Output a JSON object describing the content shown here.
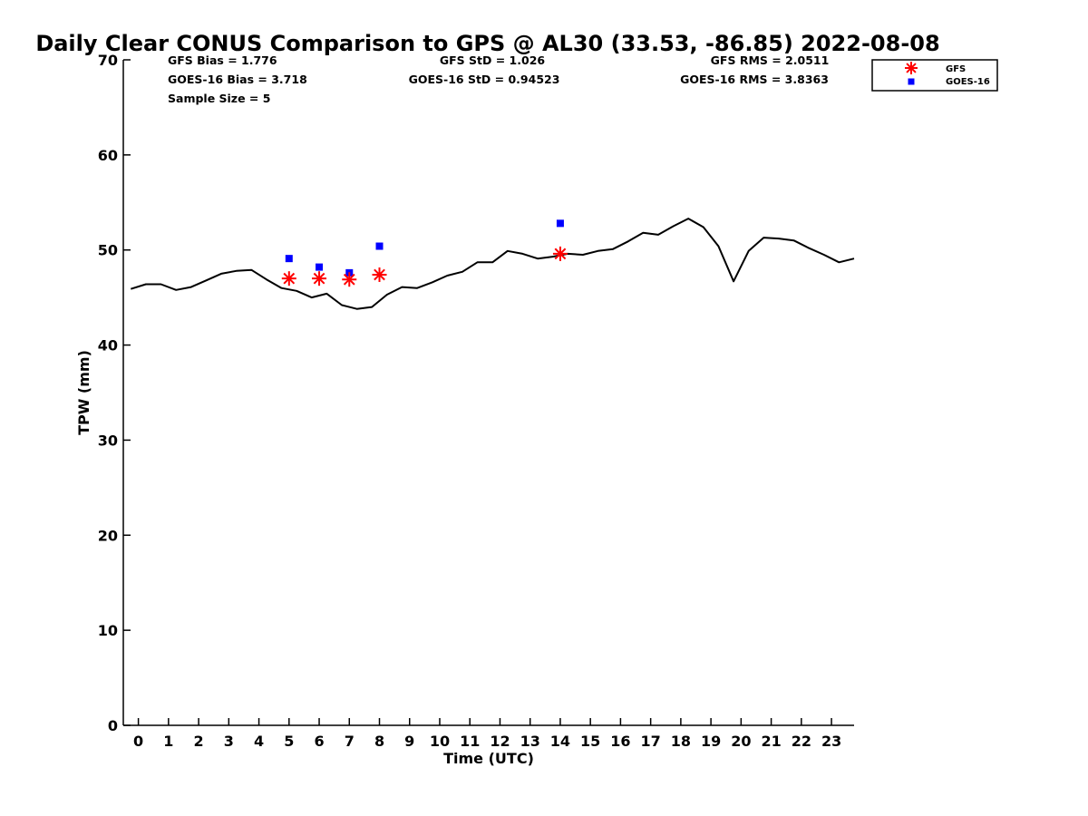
{
  "chart_data": {
    "type": "line",
    "title": "Daily Clear CONUS Comparison to GPS @ AL30 (33.53, -86.85) 2022-08-08",
    "xlabel": "Time (UTC)",
    "ylabel": "TPW (mm)",
    "xlim": [
      -0.5,
      23.75
    ],
    "ylim": [
      0,
      70
    ],
    "xticks": [
      "0",
      "1",
      "2",
      "3",
      "4",
      "5",
      "6",
      "7",
      "8",
      "9",
      "10",
      "11",
      "12",
      "13",
      "14",
      "15",
      "16",
      "17",
      "18",
      "19",
      "20",
      "21",
      "22",
      "23"
    ],
    "yticks": [
      "0",
      "10",
      "20",
      "30",
      "40",
      "50",
      "60",
      "70"
    ],
    "grid": false,
    "legend_position": "top-right, outside plot",
    "stats": {
      "gfs_bias": "GFS Bias = 1.776",
      "goes_bias": "GOES-16 Bias = 3.718",
      "sample_size": "Sample Size = 5",
      "gfs_std": "GFS StD = 1.026",
      "goes_std": "GOES-16 StD = 0.94523",
      "gfs_rms": "GFS RMS = 2.0511",
      "goes_rms": "GOES-16 RMS = 3.8363"
    },
    "gps_line": {
      "color": "#000000",
      "x": [
        -0.25,
        0.25,
        0.75,
        1.25,
        1.75,
        2.25,
        2.75,
        3.25,
        3.75,
        4.25,
        4.75,
        5.25,
        5.75,
        6.25,
        6.75,
        7.25,
        7.75,
        8.25,
        8.75,
        9.25,
        9.75,
        10.25,
        10.75,
        11.25,
        11.75,
        12.25,
        12.75,
        13.25,
        13.75,
        14.25,
        14.75,
        15.25,
        15.75,
        16.25,
        16.75,
        17.25,
        17.75,
        18.25,
        18.75,
        19.25,
        19.75,
        20.25,
        20.75,
        21.25,
        21.75,
        22.25,
        22.75,
        23.25,
        23.75
      ],
      "y": [
        45.9,
        46.4,
        46.4,
        45.8,
        46.1,
        46.8,
        47.5,
        47.8,
        47.9,
        46.9,
        46.0,
        45.7,
        45.0,
        45.4,
        44.2,
        43.8,
        44.0,
        45.3,
        46.1,
        46.0,
        46.6,
        47.3,
        47.7,
        48.7,
        48.7,
        49.9,
        49.6,
        49.1,
        49.3,
        49.6,
        49.5,
        49.9,
        50.1,
        50.9,
        51.8,
        51.6,
        52.5,
        53.3,
        52.4,
        50.4,
        46.7,
        49.9,
        51.3,
        51.2,
        51.0,
        50.2,
        49.5,
        48.7,
        49.1
      ]
    },
    "series": [
      {
        "name": "GFS",
        "marker": "asterisk",
        "color": "#ff0000",
        "x": [
          5,
          6,
          7,
          8,
          14
        ],
        "y": [
          47.0,
          47.0,
          46.9,
          47.4,
          49.6
        ]
      },
      {
        "name": "GOES-16",
        "marker": "square",
        "color": "#0000ff",
        "x": [
          5,
          6,
          7,
          8,
          14
        ],
        "y": [
          49.1,
          48.2,
          47.6,
          50.4,
          52.8
        ]
      }
    ]
  }
}
